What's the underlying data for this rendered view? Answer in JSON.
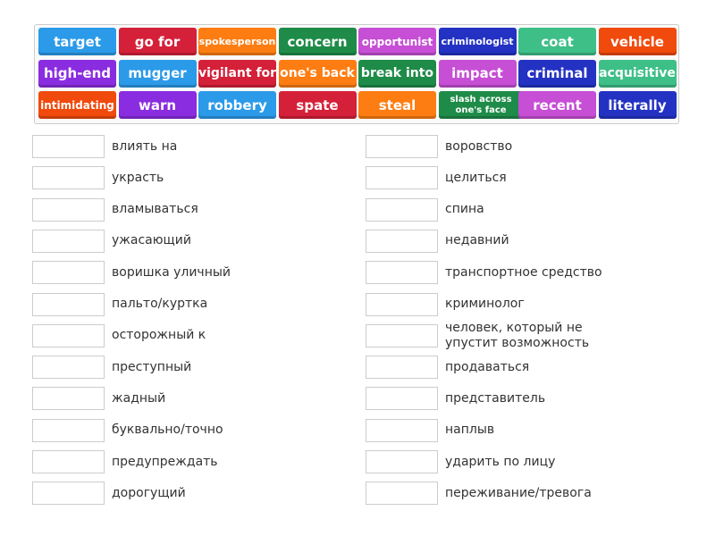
{
  "colors": {
    "blue": "#2b9ae8",
    "red": "#d52039",
    "orange": "#fd7d12",
    "green": "#1f8b48",
    "magenta": "#c64fd5",
    "navy": "#2332c3",
    "teal": "#3ebf88",
    "redorange": "#f04a0c",
    "purple": "#8a2ce0"
  },
  "tiles": [
    {
      "text": "target",
      "color": "blue",
      "size": 15
    },
    {
      "text": "go for",
      "color": "red",
      "size": 15
    },
    {
      "text": "spokesperson",
      "color": "orange",
      "size": 11
    },
    {
      "text": "concern",
      "color": "green",
      "size": 15
    },
    {
      "text": "opportunist",
      "color": "magenta",
      "size": 12
    },
    {
      "text": "criminologist",
      "color": "navy",
      "size": 11
    },
    {
      "text": "coat",
      "color": "teal",
      "size": 15
    },
    {
      "text": "vehicle",
      "color": "redorange",
      "size": 15
    },
    {
      "text": "high-end",
      "color": "purple",
      "size": 15
    },
    {
      "text": "mugger",
      "color": "blue",
      "size": 15
    },
    {
      "text": "vigilant for",
      "color": "red",
      "size": 14
    },
    {
      "text": "one's back",
      "color": "orange",
      "size": 14
    },
    {
      "text": "break into",
      "color": "green",
      "size": 14
    },
    {
      "text": "impact",
      "color": "magenta",
      "size": 15
    },
    {
      "text": "criminal",
      "color": "navy",
      "size": 15
    },
    {
      "text": "acquisitive",
      "color": "teal",
      "size": 14
    },
    {
      "text": "intimidating",
      "color": "redorange",
      "size": 12
    },
    {
      "text": "warn",
      "color": "purple",
      "size": 15
    },
    {
      "text": "robbery",
      "color": "blue",
      "size": 15
    },
    {
      "text": "spate",
      "color": "red",
      "size": 15
    },
    {
      "text": "steal",
      "color": "orange",
      "size": 15
    },
    {
      "text": "slash across one's face",
      "color": "green",
      "size": 10
    },
    {
      "text": "recent",
      "color": "magenta",
      "size": 15
    },
    {
      "text": "literally",
      "color": "navy",
      "size": 15
    }
  ],
  "left": [
    "влиять на",
    "украсть",
    "вламываться",
    "ужасающий",
    "воришка уличный",
    "пальто/куртка",
    "осторожный к",
    "преступный",
    "жадный",
    "буквально/точно",
    "предупреждать",
    "дорогущий"
  ],
  "right": [
    "воровство",
    "целиться",
    "спина",
    "недавний",
    "транспортное средство",
    "криминолог",
    "человек, который не упустит возможность",
    "продаваться",
    "представитель",
    "наплыв",
    "ударить по лицу",
    "переживание/тревога"
  ]
}
